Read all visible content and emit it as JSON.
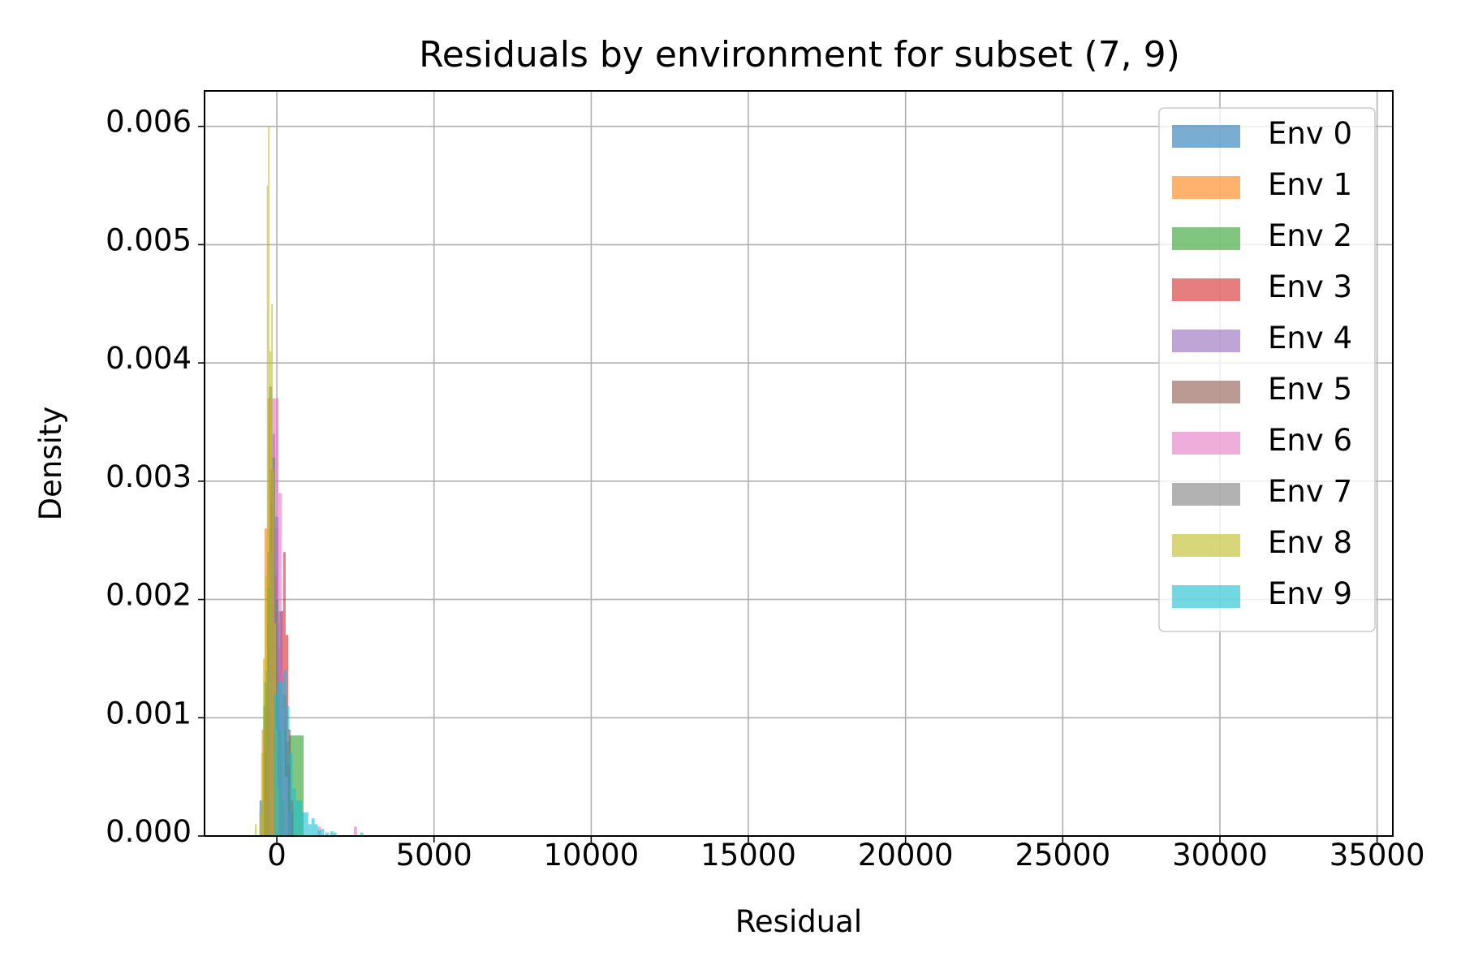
{
  "chart_data": {
    "type": "histogram",
    "title": "Residuals by environment for subset (7, 9)",
    "xlabel": "Residual",
    "ylabel": "Density",
    "xlim": [
      -2300,
      35500
    ],
    "ylim": [
      0,
      0.0063
    ],
    "xticks": [
      0,
      5000,
      10000,
      15000,
      20000,
      25000,
      30000,
      35000
    ],
    "xtick_labels": [
      "0",
      "5000",
      "10000",
      "15000",
      "20000",
      "25000",
      "30000",
      "35000"
    ],
    "yticks": [
      0,
      0.001,
      0.002,
      0.003,
      0.004,
      0.005,
      0.006
    ],
    "ytick_labels": [
      "0.000",
      "0.001",
      "0.002",
      "0.003",
      "0.004",
      "0.005",
      "0.006"
    ],
    "grid": true,
    "legend_position": "top-right",
    "series": [
      {
        "name": "Env 0",
        "color": "#1f77b4",
        "bins": [
          [
            -550,
            -430,
            0.0003
          ],
          [
            -430,
            -310,
            0.0011
          ],
          [
            -310,
            -190,
            0.0024
          ],
          [
            -190,
            -70,
            0.0031
          ],
          [
            -70,
            50,
            0.0027
          ],
          [
            50,
            170,
            0.0019
          ],
          [
            170,
            290,
            0.0012
          ],
          [
            290,
            410,
            0.0006
          ],
          [
            410,
            530,
            0.0002
          ]
        ]
      },
      {
        "name": "Env 1",
        "color": "#ff7f0e",
        "bins": [
          [
            -480,
            -390,
            0.0009
          ],
          [
            -390,
            -300,
            0.0026
          ],
          [
            -300,
            -210,
            0.0037
          ],
          [
            -210,
            -120,
            0.0031
          ],
          [
            -120,
            -30,
            0.0018
          ],
          [
            -30,
            60,
            0.0008
          ],
          [
            60,
            150,
            0.0003
          ]
        ]
      },
      {
        "name": "Env 2",
        "color": "#2ca02c",
        "bins": [
          [
            -400,
            -300,
            0.0013
          ],
          [
            -300,
            -200,
            0.0021
          ],
          [
            -200,
            -100,
            0.0017
          ],
          [
            -100,
            0,
            0.0012
          ],
          [
            0,
            100,
            0.001
          ],
          [
            100,
            200,
            0.0009
          ],
          [
            200,
            300,
            0.0009
          ],
          [
            300,
            400,
            0.0008
          ],
          [
            400,
            850,
            0.00085
          ]
        ]
      },
      {
        "name": "Env 3",
        "color": "#d62728",
        "bins": [
          [
            -300,
            -200,
            0.0011
          ],
          [
            -200,
            -100,
            0.0028
          ],
          [
            -100,
            0,
            0.002
          ],
          [
            0,
            100,
            0.0016
          ],
          [
            100,
            200,
            0.0019
          ],
          [
            200,
            280,
            0.0024
          ],
          [
            280,
            360,
            0.0017
          ],
          [
            360,
            440,
            0.0009
          ],
          [
            440,
            520,
            0.0003
          ]
        ]
      },
      {
        "name": "Env 4",
        "color": "#9467bd",
        "bins": [
          [
            -350,
            -250,
            0.0008
          ],
          [
            -250,
            -150,
            0.0026
          ],
          [
            -150,
            -50,
            0.0034
          ],
          [
            -50,
            50,
            0.0026
          ],
          [
            50,
            150,
            0.0018
          ],
          [
            150,
            250,
            0.0011
          ],
          [
            250,
            350,
            0.0005
          ],
          [
            350,
            450,
            0.0002
          ]
        ]
      },
      {
        "name": "Env 5",
        "color": "#8c564b",
        "bins": [
          [
            -400,
            -300,
            0.0007
          ],
          [
            -300,
            -200,
            0.0018
          ],
          [
            -200,
            -100,
            0.0029
          ],
          [
            -100,
            0,
            0.0022
          ],
          [
            0,
            100,
            0.0013
          ],
          [
            100,
            200,
            0.0006
          ],
          [
            200,
            300,
            0.0002
          ]
        ]
      },
      {
        "name": "Env 6",
        "color": "#e377c2",
        "bins": [
          [
            -250,
            -150,
            0.0024
          ],
          [
            -150,
            -50,
            0.0037
          ],
          [
            -50,
            50,
            0.0037
          ],
          [
            50,
            150,
            0.0029
          ],
          [
            150,
            250,
            0.0014
          ],
          [
            250,
            350,
            0.0005
          ],
          [
            1300,
            1400,
            8e-05
          ],
          [
            2450,
            2550,
            8e-05
          ]
        ]
      },
      {
        "name": "Env 7",
        "color": "#7f7f7f",
        "bins": [
          [
            -350,
            -250,
            0.0014
          ],
          [
            -250,
            -150,
            0.0038
          ],
          [
            -150,
            -50,
            0.0032
          ],
          [
            -50,
            50,
            0.002
          ],
          [
            50,
            150,
            0.0009
          ],
          [
            150,
            250,
            0.0003
          ]
        ]
      },
      {
        "name": "Env 8",
        "color": "#bcbd22",
        "bins": [
          [
            -700,
            -640,
            0.0001
          ],
          [
            -560,
            -500,
            0.0002
          ],
          [
            -500,
            -440,
            0.0007
          ],
          [
            -440,
            -380,
            0.0015
          ],
          [
            -380,
            -320,
            0.0022
          ],
          [
            -320,
            -280,
            0.0055
          ],
          [
            -280,
            -230,
            0.006
          ],
          [
            -230,
            -180,
            0.0041
          ],
          [
            -180,
            -130,
            0.0045
          ],
          [
            -130,
            -80,
            0.0031
          ],
          [
            -80,
            -30,
            0.0018
          ],
          [
            -30,
            20,
            0.0009
          ],
          [
            20,
            70,
            0.0004
          ]
        ]
      },
      {
        "name": "Env 9",
        "color": "#17becf",
        "bins": [
          [
            -100,
            0,
            0.0012
          ],
          [
            0,
            100,
            0.0013
          ],
          [
            100,
            200,
            0.0013
          ],
          [
            200,
            300,
            0.0014
          ],
          [
            300,
            400,
            0.0011
          ],
          [
            400,
            500,
            0.0007
          ],
          [
            500,
            600,
            0.0004
          ],
          [
            600,
            700,
            0.0003
          ],
          [
            700,
            800,
            0.0003
          ],
          [
            800,
            900,
            0.0002
          ],
          [
            900,
            1000,
            0.0002
          ],
          [
            1000,
            1100,
            0.0001
          ],
          [
            1100,
            1200,
            0.00015
          ],
          [
            1200,
            1300,
            0.0001
          ],
          [
            1300,
            1400,
            5e-05
          ],
          [
            1400,
            1500,
            6e-05
          ],
          [
            1550,
            1650,
            3e-05
          ],
          [
            1700,
            1800,
            4e-05
          ],
          [
            1800,
            1900,
            3e-05
          ],
          [
            2650,
            2750,
            3e-05
          ]
        ]
      }
    ]
  }
}
